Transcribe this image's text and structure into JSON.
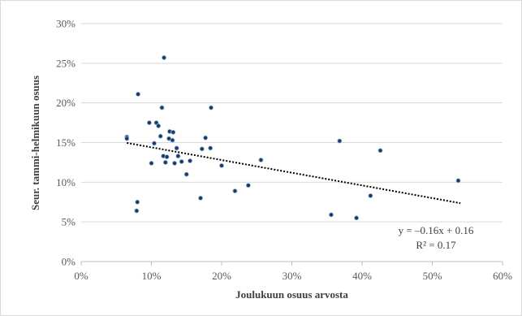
{
  "chart_data": {
    "type": "scatter",
    "title": "",
    "xlabel": "Joulukuun osuus arvosta",
    "ylabel": "Seur. tammi-helmikuun  osuus",
    "xlim": [
      0,
      0.6
    ],
    "ylim": [
      0,
      0.3
    ],
    "x_ticks": [
      "0%",
      "10%",
      "20%",
      "30%",
      "40%",
      "50%",
      "60%"
    ],
    "y_ticks": [
      "0%",
      "5%",
      "10%",
      "15%",
      "20%",
      "25%",
      "30%"
    ],
    "grid": "horizontal",
    "legend": "none",
    "marker_color": "#1f3864",
    "trendline": {
      "type": "linear",
      "slope": -0.16,
      "intercept": 0.16,
      "x_range": [
        0.065,
        0.54
      ],
      "style": "dotted",
      "color": "#000000",
      "equation_label": "y = –0.16x + 0.16",
      "r2_label": "R² = 0.17"
    },
    "points": [
      [
        0.065,
        0.157
      ],
      [
        0.065,
        0.155
      ],
      [
        0.079,
        0.064
      ],
      [
        0.08,
        0.075
      ],
      [
        0.081,
        0.211
      ],
      [
        0.097,
        0.175
      ],
      [
        0.1,
        0.124
      ],
      [
        0.104,
        0.149
      ],
      [
        0.107,
        0.175
      ],
      [
        0.11,
        0.171
      ],
      [
        0.113,
        0.158
      ],
      [
        0.115,
        0.194
      ],
      [
        0.117,
        0.133
      ],
      [
        0.118,
        0.257
      ],
      [
        0.12,
        0.125
      ],
      [
        0.122,
        0.132
      ],
      [
        0.125,
        0.155
      ],
      [
        0.126,
        0.164
      ],
      [
        0.13,
        0.153
      ],
      [
        0.131,
        0.163
      ],
      [
        0.133,
        0.124
      ],
      [
        0.136,
        0.143
      ],
      [
        0.138,
        0.133
      ],
      [
        0.143,
        0.126
      ],
      [
        0.15,
        0.11
      ],
      [
        0.155,
        0.127
      ],
      [
        0.17,
        0.08
      ],
      [
        0.172,
        0.142
      ],
      [
        0.177,
        0.156
      ],
      [
        0.184,
        0.143
      ],
      [
        0.185,
        0.194
      ],
      [
        0.2,
        0.121
      ],
      [
        0.219,
        0.089
      ],
      [
        0.238,
        0.096
      ],
      [
        0.256,
        0.128
      ],
      [
        0.356,
        0.059
      ],
      [
        0.368,
        0.152
      ],
      [
        0.392,
        0.055
      ],
      [
        0.412,
        0.083
      ],
      [
        0.426,
        0.14
      ],
      [
        0.537,
        0.102
      ]
    ]
  }
}
